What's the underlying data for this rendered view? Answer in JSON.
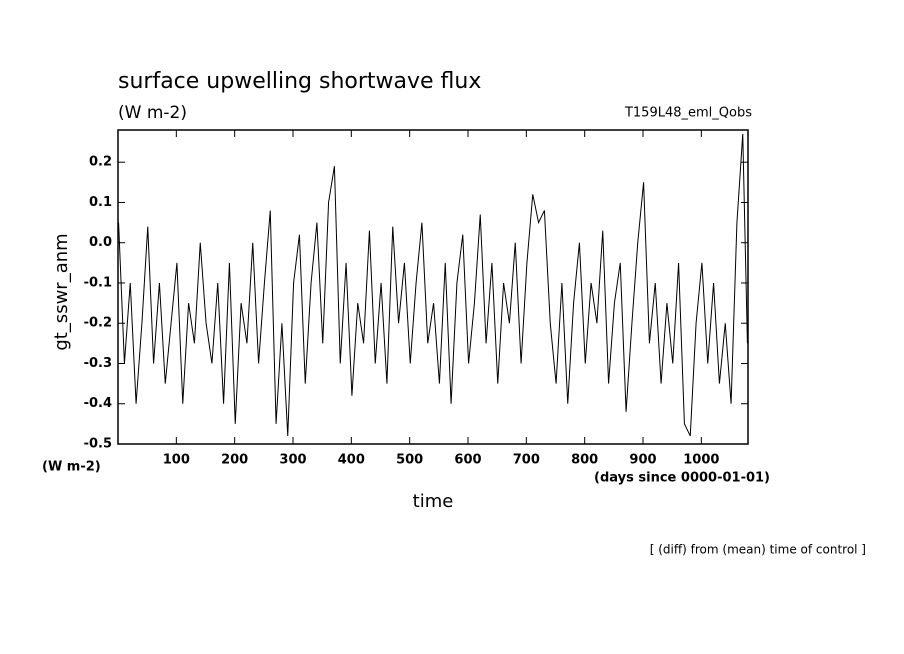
{
  "chart_data": {
    "type": "line",
    "title": "surface upwelling shortwave flux",
    "subtitle": "(W m-2)",
    "annotation": "T159L48_eml_Qobs",
    "ylabel": "gt_sswr_anm",
    "yunit": "(W m-2)",
    "xlabel": "time",
    "xunit": "(days since 0000-01-01)",
    "footer": "[ (diff) from (mean) time of control ]",
    "xlim": [
      0,
      1080
    ],
    "ylim": [
      -0.5,
      0.28
    ],
    "xticks": [
      100,
      200,
      300,
      400,
      500,
      600,
      700,
      800,
      900,
      1000
    ],
    "yticks": [
      -0.5,
      -0.4,
      -0.3,
      -0.2,
      -0.1,
      {
        "value": 0,
        "label": "0.0"
      },
      0.1,
      0.2
    ],
    "x": [
      1,
      11,
      21,
      31,
      41,
      51,
      61,
      71,
      81,
      91,
      101,
      111,
      121,
      131,
      141,
      151,
      161,
      171,
      181,
      191,
      201,
      211,
      221,
      231,
      241,
      251,
      261,
      271,
      281,
      291,
      301,
      311,
      321,
      331,
      341,
      351,
      361,
      371,
      381,
      391,
      401,
      411,
      421,
      431,
      441,
      451,
      461,
      471,
      481,
      491,
      501,
      511,
      521,
      531,
      541,
      551,
      561,
      571,
      581,
      591,
      601,
      611,
      621,
      631,
      641,
      651,
      661,
      671,
      681,
      691,
      701,
      711,
      721,
      731,
      741,
      751,
      761,
      771,
      781,
      791,
      801,
      811,
      821,
      831,
      841,
      851,
      861,
      871,
      881,
      891,
      901,
      911,
      921,
      931,
      941,
      951,
      961,
      971,
      981,
      991,
      1001,
      1011,
      1021,
      1031,
      1041,
      1051,
      1061,
      1071,
      1079
    ],
    "series": [
      {
        "color": "#000000",
        "values": [
          0.05,
          -0.3,
          -0.1,
          -0.4,
          -0.2,
          0.04,
          -0.3,
          -0.1,
          -0.35,
          -0.2,
          -0.05,
          -0.4,
          -0.15,
          -0.25,
          0.0,
          -0.2,
          -0.3,
          -0.1,
          -0.4,
          -0.05,
          -0.45,
          -0.15,
          -0.25,
          0.0,
          -0.3,
          -0.1,
          0.08,
          -0.45,
          -0.2,
          -0.48,
          -0.1,
          0.02,
          -0.35,
          -0.1,
          0.05,
          -0.25,
          0.1,
          0.19,
          -0.3,
          -0.05,
          -0.38,
          -0.15,
          -0.25,
          0.03,
          -0.3,
          -0.1,
          -0.35,
          0.04,
          -0.2,
          -0.05,
          -0.3,
          -0.1,
          0.05,
          -0.25,
          -0.15,
          -0.35,
          -0.05,
          -0.4,
          -0.1,
          0.02,
          -0.3,
          -0.15,
          0.07,
          -0.25,
          -0.05,
          -0.35,
          -0.1,
          -0.2,
          0.0,
          -0.3,
          -0.05,
          0.12,
          0.05,
          0.08,
          -0.2,
          -0.35,
          -0.1,
          -0.4,
          -0.15,
          0.0,
          -0.3,
          -0.1,
          -0.2,
          0.03,
          -0.35,
          -0.15,
          -0.05,
          -0.42,
          -0.2,
          0.0,
          0.15,
          -0.25,
          -0.1,
          -0.35,
          -0.15,
          -0.3,
          -0.05,
          -0.45,
          -0.48,
          -0.2,
          -0.05,
          -0.3,
          -0.1,
          -0.35,
          -0.2,
          -0.4,
          0.05,
          0.27,
          -0.25
        ]
      }
    ]
  }
}
